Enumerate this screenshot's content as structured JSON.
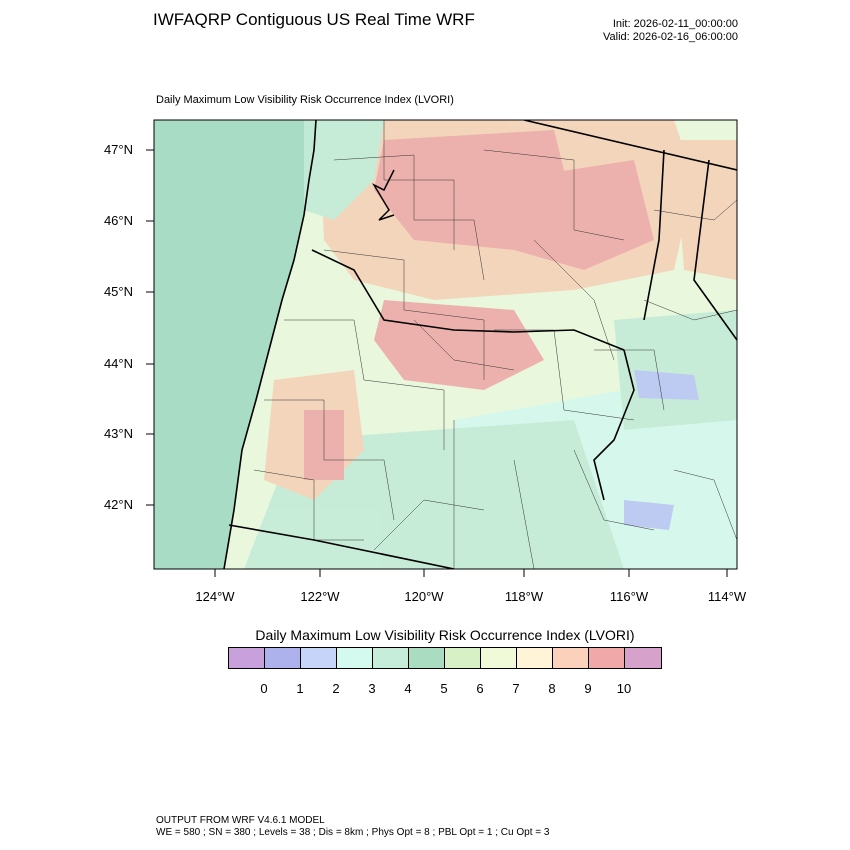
{
  "header": {
    "title": "IWFAQRP Contiguous US Real Time WRF",
    "init": "Init: 2026-02-11_00:00:00",
    "valid": "Valid: 2026-02-16_06:00:00"
  },
  "map": {
    "title": "Daily Maximum Low Visibility Risk Occurrence Index   (LVORI)",
    "lat_labels": [
      "47°N",
      "46°N",
      "45°N",
      "44°N",
      "43°N",
      "42°N"
    ],
    "lon_labels": [
      "124°W",
      "122°W",
      "120°W",
      "118°W",
      "116°W",
      "114°W"
    ],
    "colors": {
      "ocean": "#a8dcc4",
      "land_base": "#e9f7dc",
      "low": "#d4f9ee",
      "mid": "#c3ebd8",
      "high": "#f5d2b8",
      "veryhigh": "#eeaaa8",
      "lowest": "#b9c6f5"
    }
  },
  "colorbar": {
    "title": "Daily Maximum Low Visibility Risk Occurrence Index  (LVORI)",
    "colors": [
      "#c8a0dc",
      "#aeb2ec",
      "#c6d4fa",
      "#d4f9ee",
      "#c6ecda",
      "#a9dcc1",
      "#d7f0c6",
      "#f0fad8",
      "#fff4d8",
      "#fbd1bb",
      "#f1a8a8",
      "#d6a2cc"
    ],
    "labels": [
      "0",
      "1",
      "2",
      "3",
      "4",
      "5",
      "6",
      "7",
      "8",
      "9",
      "10"
    ]
  },
  "footer": {
    "line1": "OUTPUT FROM WRF V4.6.1 MODEL",
    "line2": "WE = 580 ; SN = 380 ; Levels = 38 ; Dis = 8km ; Phys Opt = 8 ; PBL Opt = 1 ; Cu Opt = 3"
  }
}
